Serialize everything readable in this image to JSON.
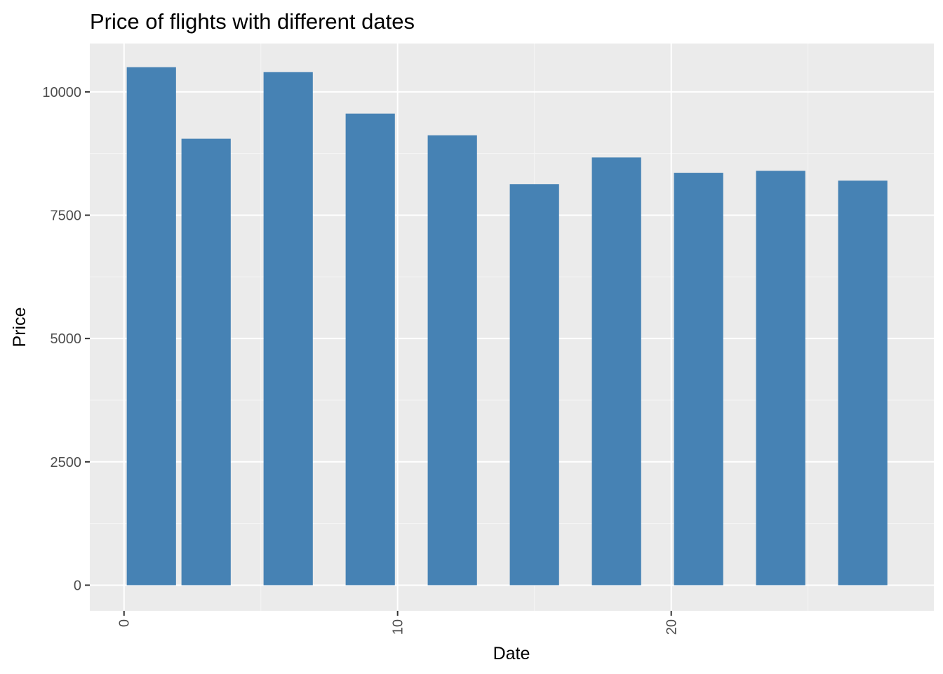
{
  "colors": {
    "panel_background": "#ebebeb",
    "grid_major": "#ffffff",
    "grid_minor": "#f5f5f5",
    "bar_fill": "#4682b4",
    "tick_mark": "#333333",
    "tick_label": "#4d4d4d"
  },
  "chart_data": {
    "type": "bar",
    "title": "Price of flights with different dates",
    "xlabel": "Date",
    "ylabel": "Price",
    "xlim": [
      -1.25,
      29.6
    ],
    "ylim": [
      -520,
      10980
    ],
    "x_ticks": [
      0,
      10,
      20
    ],
    "x_tick_labels": [
      "0",
      "10",
      "20"
    ],
    "x_tick_label_rotation": "vertical",
    "y_ticks": [
      0,
      2500,
      5000,
      7500,
      10000
    ],
    "y_tick_labels": [
      "0",
      "2500",
      "5000",
      "7500",
      "10000"
    ],
    "grid": true,
    "legend": "none",
    "bar_width": 1.8,
    "series": [
      {
        "x": [
          1,
          3,
          6,
          9,
          12,
          15,
          18,
          21,
          24,
          27
        ],
        "values": [
          10500,
          9050,
          10400,
          9560,
          9120,
          8130,
          8670,
          8360,
          8400,
          8200
        ]
      }
    ]
  }
}
